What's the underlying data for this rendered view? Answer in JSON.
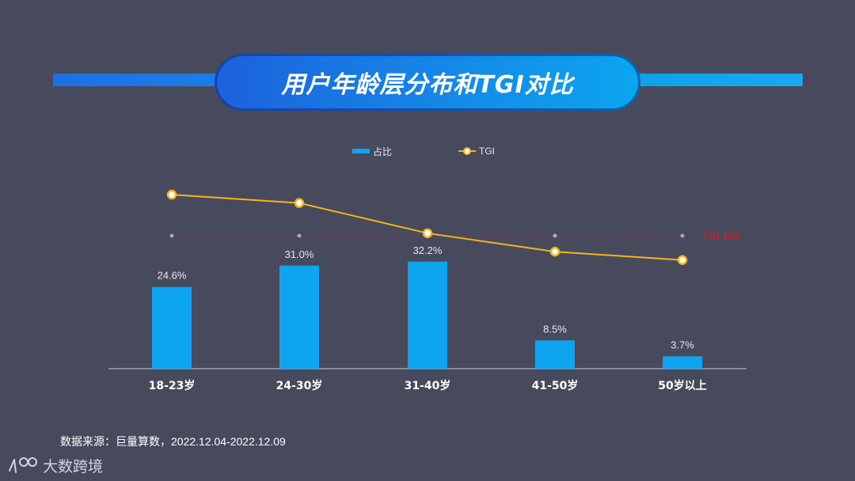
{
  "title": "用户年龄层分布和TGI对比",
  "legend": {
    "bar_label": "占比",
    "line_label": "TGI"
  },
  "reference_label": "TGI 100",
  "source_text": "数据来源：巨量算数，2022.12.04-2022.12.09",
  "logo_text": "大数跨境",
  "colors": {
    "bar": "#0ea5f0",
    "line": "#f2b51a",
    "reference": "#c0272d",
    "background": "#474a5c"
  },
  "chart_data": {
    "type": "bar",
    "categories": [
      "18-23岁",
      "24-30岁",
      "31-40岁",
      "41-50岁",
      "50岁以上"
    ],
    "series": [
      {
        "name": "占比",
        "type": "bar",
        "values": [
          24.6,
          31.0,
          32.2,
          8.5,
          3.7
        ],
        "labels": [
          "24.6%",
          "31.0%",
          "32.2%",
          "8.5%",
          "3.7%"
        ]
      },
      {
        "name": "TGI",
        "type": "line",
        "values": [
          149,
          139,
          103,
          81,
          71
        ]
      }
    ],
    "reference_line": {
      "label": "TGI 100",
      "value": 100
    }
  }
}
